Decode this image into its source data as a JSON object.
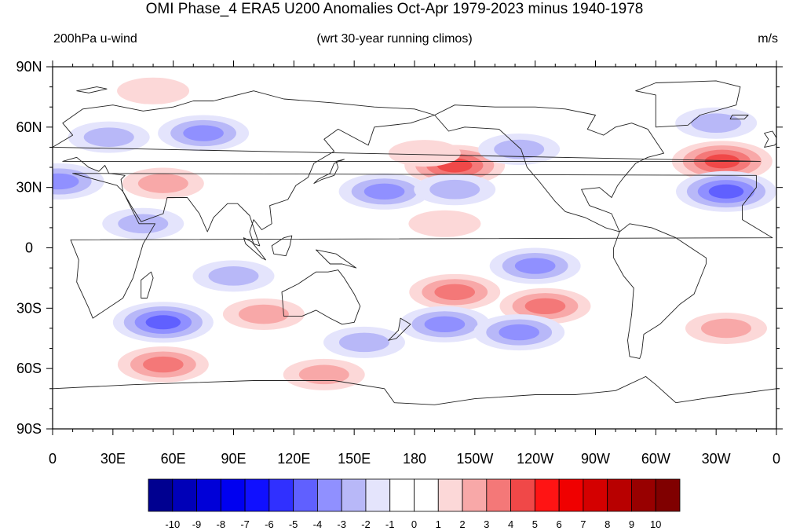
{
  "title": "OMI Phase_4 ERA5 U200 Anomalies Oct-Apr 1979-2023 minus 1940-1978",
  "left_label": "200hPa u-wind",
  "center_label": "(wrt 30-year running climos)",
  "right_label": "m/s",
  "map": {
    "lat_ticks": [
      "90N",
      "60N",
      "30N",
      "0",
      "30S",
      "60S",
      "90S"
    ],
    "lon_ticks": [
      "0",
      "30E",
      "60E",
      "90E",
      "120E",
      "150E",
      "180",
      "150W",
      "120W",
      "90W",
      "60W",
      "30W",
      "0"
    ]
  },
  "colorbar": {
    "labels": [
      "-10",
      "-9",
      "-8",
      "-7",
      "-6",
      "-5",
      "-4",
      "-3",
      "-2",
      "-1",
      "0",
      "1",
      "2",
      "3",
      "4",
      "5",
      "6",
      "7",
      "8",
      "9",
      "10"
    ],
    "colors": [
      "#000090",
      "#0000b8",
      "#0000d8",
      "#0000f0",
      "#1010ff",
      "#3030ff",
      "#6060ff",
      "#9090ff",
      "#b8b8f8",
      "#e4e4fc",
      "#ffffff",
      "#ffffff",
      "#fcd8d8",
      "#f8a8a8",
      "#f47878",
      "#f04848",
      "#ff1414",
      "#f00000",
      "#d40000",
      "#b80000",
      "#980000",
      "#800000"
    ]
  },
  "anomaly_blobs": [
    {
      "lon": 75,
      "lat": 57,
      "value": -3
    },
    {
      "lon": 28,
      "lat": 55,
      "value": -2
    },
    {
      "lon": 50,
      "lat": 78,
      "value": 1
    },
    {
      "lon": 55,
      "lat": 32,
      "value": 2
    },
    {
      "lon": 45,
      "lat": 12,
      "value": -2
    },
    {
      "lon": 3,
      "lat": 33,
      "value": -3
    },
    {
      "lon": 200,
      "lat": 41,
      "value": 4
    },
    {
      "lon": 185,
      "lat": 47,
      "value": 1
    },
    {
      "lon": 165,
      "lat": 28,
      "value": -3
    },
    {
      "lon": 200,
      "lat": 29,
      "value": -2
    },
    {
      "lon": 232,
      "lat": 49,
      "value": -2
    },
    {
      "lon": 333,
      "lat": 43,
      "value": 4
    },
    {
      "lon": 335,
      "lat": 28,
      "value": -4
    },
    {
      "lon": 330,
      "lat": 62,
      "value": -2
    },
    {
      "lon": 195,
      "lat": 12,
      "value": 1
    },
    {
      "lon": 240,
      "lat": -9,
      "value": -3
    },
    {
      "lon": 90,
      "lat": -14,
      "value": -2
    },
    {
      "lon": 200,
      "lat": -22,
      "value": 3
    },
    {
      "lon": 245,
      "lat": -29,
      "value": 3
    },
    {
      "lon": 55,
      "lat": -37,
      "value": -4
    },
    {
      "lon": 105,
      "lat": -33,
      "value": 2
    },
    {
      "lon": 195,
      "lat": -38,
      "value": -3
    },
    {
      "lon": 232,
      "lat": -42,
      "value": -3
    },
    {
      "lon": 155,
      "lat": -47,
      "value": -2
    },
    {
      "lon": 335,
      "lat": -40,
      "value": 2
    },
    {
      "lon": 55,
      "lat": -58,
      "value": 3
    },
    {
      "lon": 135,
      "lat": -63,
      "value": 2
    }
  ]
}
